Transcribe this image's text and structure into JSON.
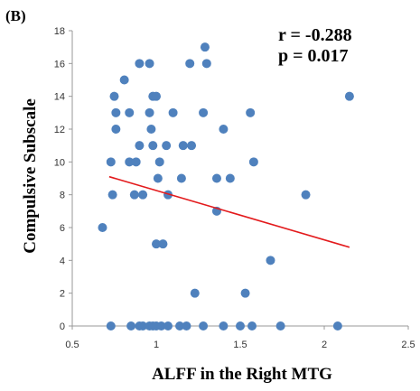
{
  "panel_label": "(B)",
  "stats": {
    "r": "r = -0.288",
    "p": "p = 0.017"
  },
  "chart_data": {
    "type": "scatter",
    "title": "",
    "xlabel": "ALFF in the Right MTG",
    "ylabel": "Compulsive Subscale",
    "xlim": [
      0.5,
      2.5
    ],
    "ylim": [
      0,
      18
    ],
    "x_ticks": [
      "0.5",
      "1",
      "1.5",
      "2",
      "2.5"
    ],
    "y_ticks": [
      "0",
      "2",
      "4",
      "6",
      "8",
      "10",
      "12",
      "14",
      "16",
      "18"
    ],
    "grid": false,
    "point_color": "#4f81bd",
    "line_color": "#e31a1c",
    "trendline": {
      "x": [
        0.72,
        2.15
      ],
      "y": [
        9.1,
        4.8
      ]
    },
    "points": [
      {
        "x": 0.73,
        "y": 0
      },
      {
        "x": 0.85,
        "y": 0
      },
      {
        "x": 0.9,
        "y": 0
      },
      {
        "x": 0.92,
        "y": 0
      },
      {
        "x": 0.96,
        "y": 0
      },
      {
        "x": 0.98,
        "y": 0
      },
      {
        "x": 1.0,
        "y": 0
      },
      {
        "x": 1.03,
        "y": 0
      },
      {
        "x": 1.07,
        "y": 0
      },
      {
        "x": 1.14,
        "y": 0
      },
      {
        "x": 1.18,
        "y": 0
      },
      {
        "x": 1.28,
        "y": 0
      },
      {
        "x": 1.4,
        "y": 0
      },
      {
        "x": 1.5,
        "y": 0
      },
      {
        "x": 1.57,
        "y": 0
      },
      {
        "x": 1.74,
        "y": 0
      },
      {
        "x": 2.08,
        "y": 0
      },
      {
        "x": 1.23,
        "y": 2
      },
      {
        "x": 1.53,
        "y": 2
      },
      {
        "x": 1.0,
        "y": 5
      },
      {
        "x": 1.04,
        "y": 5
      },
      {
        "x": 1.68,
        "y": 4
      },
      {
        "x": 0.68,
        "y": 6
      },
      {
        "x": 1.36,
        "y": 7
      },
      {
        "x": 0.74,
        "y": 8
      },
      {
        "x": 0.87,
        "y": 8
      },
      {
        "x": 0.92,
        "y": 8
      },
      {
        "x": 1.07,
        "y": 8
      },
      {
        "x": 1.89,
        "y": 8
      },
      {
        "x": 1.01,
        "y": 9
      },
      {
        "x": 1.15,
        "y": 9
      },
      {
        "x": 1.36,
        "y": 9
      },
      {
        "x": 1.44,
        "y": 9
      },
      {
        "x": 0.73,
        "y": 10
      },
      {
        "x": 0.84,
        "y": 10
      },
      {
        "x": 0.88,
        "y": 10
      },
      {
        "x": 1.02,
        "y": 10
      },
      {
        "x": 1.58,
        "y": 10
      },
      {
        "x": 0.9,
        "y": 11
      },
      {
        "x": 0.98,
        "y": 11
      },
      {
        "x": 1.06,
        "y": 11
      },
      {
        "x": 1.16,
        "y": 11
      },
      {
        "x": 1.21,
        "y": 11
      },
      {
        "x": 0.76,
        "y": 12
      },
      {
        "x": 0.97,
        "y": 12
      },
      {
        "x": 1.4,
        "y": 12
      },
      {
        "x": 0.76,
        "y": 13
      },
      {
        "x": 0.84,
        "y": 13
      },
      {
        "x": 0.96,
        "y": 13
      },
      {
        "x": 1.1,
        "y": 13
      },
      {
        "x": 1.28,
        "y": 13
      },
      {
        "x": 1.56,
        "y": 13
      },
      {
        "x": 0.75,
        "y": 14
      },
      {
        "x": 0.98,
        "y": 14
      },
      {
        "x": 1.0,
        "y": 14
      },
      {
        "x": 2.15,
        "y": 14
      },
      {
        "x": 0.81,
        "y": 15
      },
      {
        "x": 0.9,
        "y": 16
      },
      {
        "x": 0.96,
        "y": 16
      },
      {
        "x": 1.2,
        "y": 16
      },
      {
        "x": 1.3,
        "y": 16
      },
      {
        "x": 1.29,
        "y": 17
      }
    ]
  }
}
